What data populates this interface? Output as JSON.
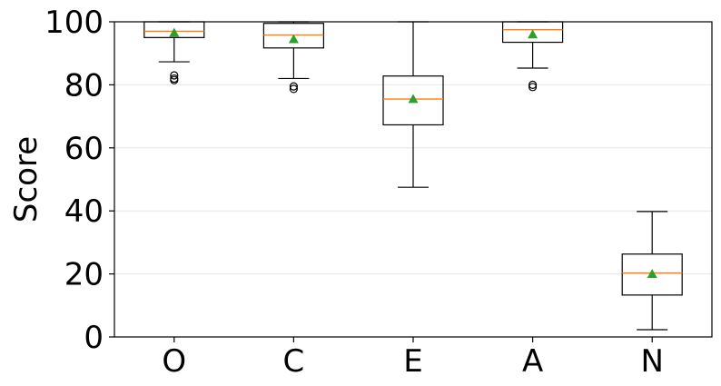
{
  "chart_data": {
    "type": "box",
    "title": "",
    "xlabel": "",
    "ylabel": "Score",
    "ylim": [
      0,
      100
    ],
    "yticks": [
      0,
      20,
      40,
      60,
      80,
      100
    ],
    "grid": "y",
    "categories": [
      "O",
      "C",
      "E",
      "A",
      "N"
    ],
    "boxes": [
      {
        "category": "O",
        "whisker_low": 87.3,
        "q1": 95.0,
        "median": 97.0,
        "q3": 100,
        "whisker_high": 100,
        "mean": 96.5,
        "outliers": [
          83.0,
          82.0,
          81.5
        ]
      },
      {
        "category": "C",
        "whisker_low": 82.0,
        "q1": 91.7,
        "median": 95.8,
        "q3": 99.5,
        "whisker_high": 100,
        "mean": 94.5,
        "outliers": [
          79.5,
          78.7
        ]
      },
      {
        "category": "E",
        "whisker_low": 47.5,
        "q1": 67.3,
        "median": 75.5,
        "q3": 82.8,
        "whisker_high": 100,
        "mean": 75.5,
        "outliers": []
      },
      {
        "category": "A",
        "whisker_low": 85.3,
        "q1": 93.5,
        "median": 97.5,
        "q3": 100,
        "whisker_high": 100,
        "mean": 96.0,
        "outliers": [
          80.0,
          79.3
        ]
      },
      {
        "category": "N",
        "whisker_low": 2.3,
        "q1": 13.3,
        "median": 20.3,
        "q3": 26.3,
        "whisker_high": 39.8,
        "mean": 20.0,
        "outliers": []
      }
    ],
    "colors": {
      "box": "#000000",
      "median": "#ff7f0e",
      "mean": "#2ca02c",
      "grid": "#e6e6e6"
    }
  }
}
